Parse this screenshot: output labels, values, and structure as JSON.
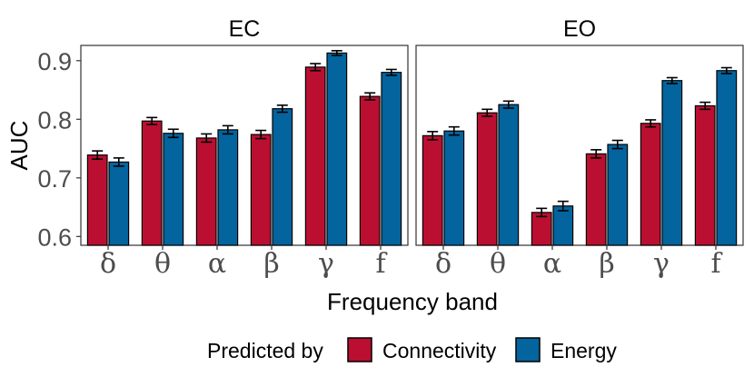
{
  "chart_data": {
    "type": "bar",
    "xlabel": "Frequency band",
    "ylabel": "AUC",
    "ylim": [
      0.585,
      0.926
    ],
    "yticks": [
      "0.6",
      "0.7",
      "0.8",
      "0.9"
    ],
    "categories": [
      "δ",
      "θ",
      "α",
      "β",
      "γ",
      "f"
    ],
    "legend": {
      "title": "Predicted by",
      "items": [
        "Connectivity",
        "Energy"
      ],
      "placement": "bottom"
    },
    "colors": {
      "Connectivity": "#bb0f32",
      "Energy": "#03649e"
    },
    "panels": [
      {
        "title": "EC",
        "series": [
          {
            "name": "Connectivity",
            "values": [
              0.739,
              0.797,
              0.768,
              0.774,
              0.889,
              0.839
            ],
            "errors": [
              0.007,
              0.006,
              0.007,
              0.007,
              0.006,
              0.006
            ]
          },
          {
            "name": "Energy",
            "values": [
              0.727,
              0.776,
              0.782,
              0.818,
              0.913,
              0.88
            ],
            "errors": [
              0.007,
              0.007,
              0.007,
              0.006,
              0.004,
              0.005
            ]
          }
        ]
      },
      {
        "title": "EO",
        "series": [
          {
            "name": "Connectivity",
            "values": [
              0.772,
              0.811,
              0.641,
              0.741,
              0.793,
              0.823
            ],
            "errors": [
              0.007,
              0.006,
              0.007,
              0.007,
              0.006,
              0.006
            ]
          },
          {
            "name": "Energy",
            "values": [
              0.78,
              0.825,
              0.652,
              0.757,
              0.866,
              0.883
            ],
            "errors": [
              0.007,
              0.006,
              0.008,
              0.007,
              0.005,
              0.005
            ]
          }
        ]
      }
    ]
  }
}
